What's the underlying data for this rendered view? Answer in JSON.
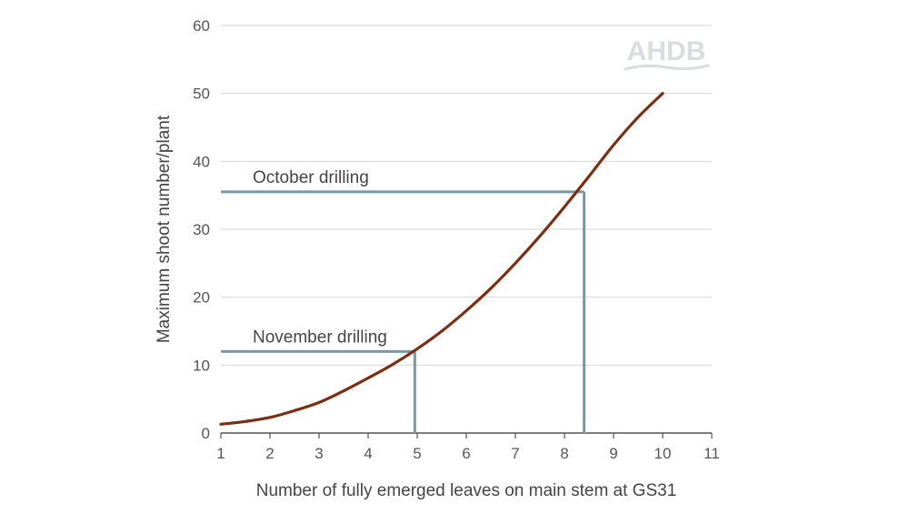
{
  "chart_data": {
    "type": "line",
    "title": "",
    "xlabel": "Number of fully emerged leaves on main stem at GS31",
    "ylabel": "Maximum shoot number/plant",
    "xlim": [
      1,
      11
    ],
    "ylim": [
      0,
      60
    ],
    "x_ticks": [
      1,
      2,
      3,
      4,
      5,
      6,
      7,
      8,
      9,
      10,
      11
    ],
    "y_ticks": [
      0,
      10,
      20,
      30,
      40,
      50,
      60
    ],
    "grid": "horizontal",
    "logo": "AHDB",
    "series": [
      {
        "color": "#7a2e12",
        "x": [
          1,
          1.5,
          2,
          2.5,
          3,
          3.5,
          4,
          4.5,
          5,
          5.5,
          6,
          6.5,
          7,
          7.5,
          8,
          8.5,
          9,
          9.5,
          10
        ],
        "y": [
          1.3,
          1.7,
          2.3,
          3.3,
          4.5,
          6.2,
          8.1,
          10.1,
          12.4,
          15.0,
          18.0,
          21.3,
          25.0,
          29.0,
          33.3,
          37.8,
          42.4,
          46.5,
          50.0
        ]
      }
    ],
    "reference_lines": [
      {
        "label": "October drilling",
        "x": 8.4,
        "y": 35.5,
        "color": "#7a97a4"
      },
      {
        "label": "November drilling",
        "x": 4.95,
        "y": 12,
        "color": "#7a97a4"
      }
    ]
  }
}
